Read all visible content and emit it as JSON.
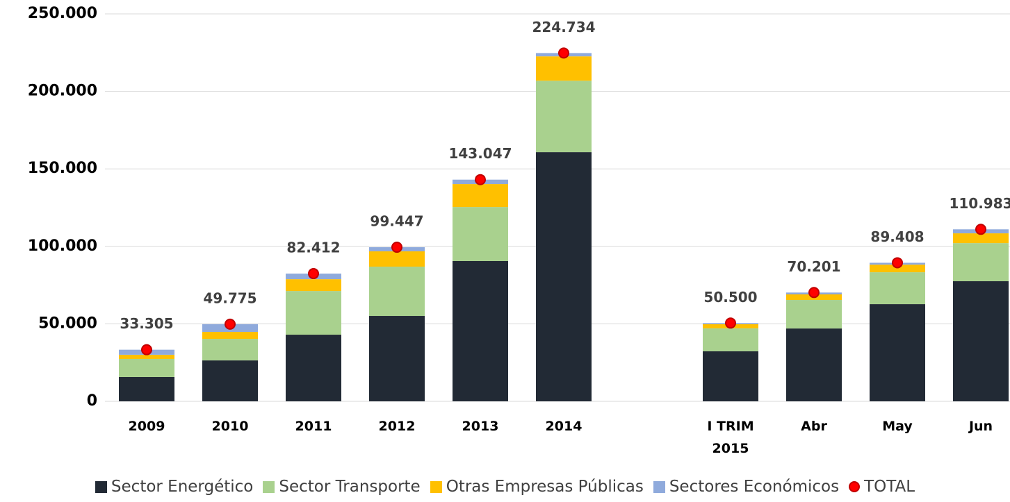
{
  "chart_data": {
    "type": "stacked_bar",
    "categories": [
      "2009",
      "2010",
      "2011",
      "2012",
      "2013",
      "2014",
      null,
      "I TRIM\n2015",
      "Abr",
      "May",
      "Jun"
    ],
    "series": [
      {
        "name": "Sector Energético",
        "color": "#222a35",
        "values": [
          15700,
          26400,
          43000,
          55100,
          90500,
          160800,
          null,
          32300,
          47000,
          62700,
          77500
        ]
      },
      {
        "name": "Sector Transporte",
        "color": "#a9d18e",
        "values": [
          11650,
          13900,
          28200,
          31800,
          34900,
          46100,
          null,
          14800,
          18400,
          20600,
          24600
        ]
      },
      {
        "name": "Otras Empresas Públicas",
        "color": "#ffc000",
        "values": [
          2700,
          4500,
          7600,
          9900,
          14800,
          15700,
          null,
          2700,
          3600,
          4900,
          6300
        ]
      },
      {
        "name": "Sectores Económicos",
        "color": "#8faadc",
        "values": [
          3255,
          4975,
          3612,
          2647,
          2847,
          2134,
          null,
          700,
          1201,
          1208,
          2583
        ]
      },
      {
        "name": "TOTAL",
        "color": "#ff0000",
        "marker": "circle",
        "values": [
          33305,
          49775,
          82412,
          99447,
          143047,
          224734,
          null,
          50500,
          70201,
          89408,
          110983
        ],
        "value_labels": [
          "33.305",
          "49.775",
          "82.412",
          "99.447",
          "143.047",
          "224.734",
          null,
          "50.500",
          "70.201",
          "89.408",
          "110.983"
        ]
      }
    ],
    "ylim": [
      0,
      250000
    ],
    "yticks": [
      0,
      {
        "value": 50000,
        "label": "50.000"
      },
      {
        "value": 100000,
        "label": "100.000"
      },
      {
        "value": 150000,
        "label": "150.000"
      },
      {
        "value": 200000,
        "label": "200.000"
      },
      {
        "value": 250000,
        "label": "250.000"
      }
    ],
    "grid": true,
    "legend": "bottom"
  }
}
